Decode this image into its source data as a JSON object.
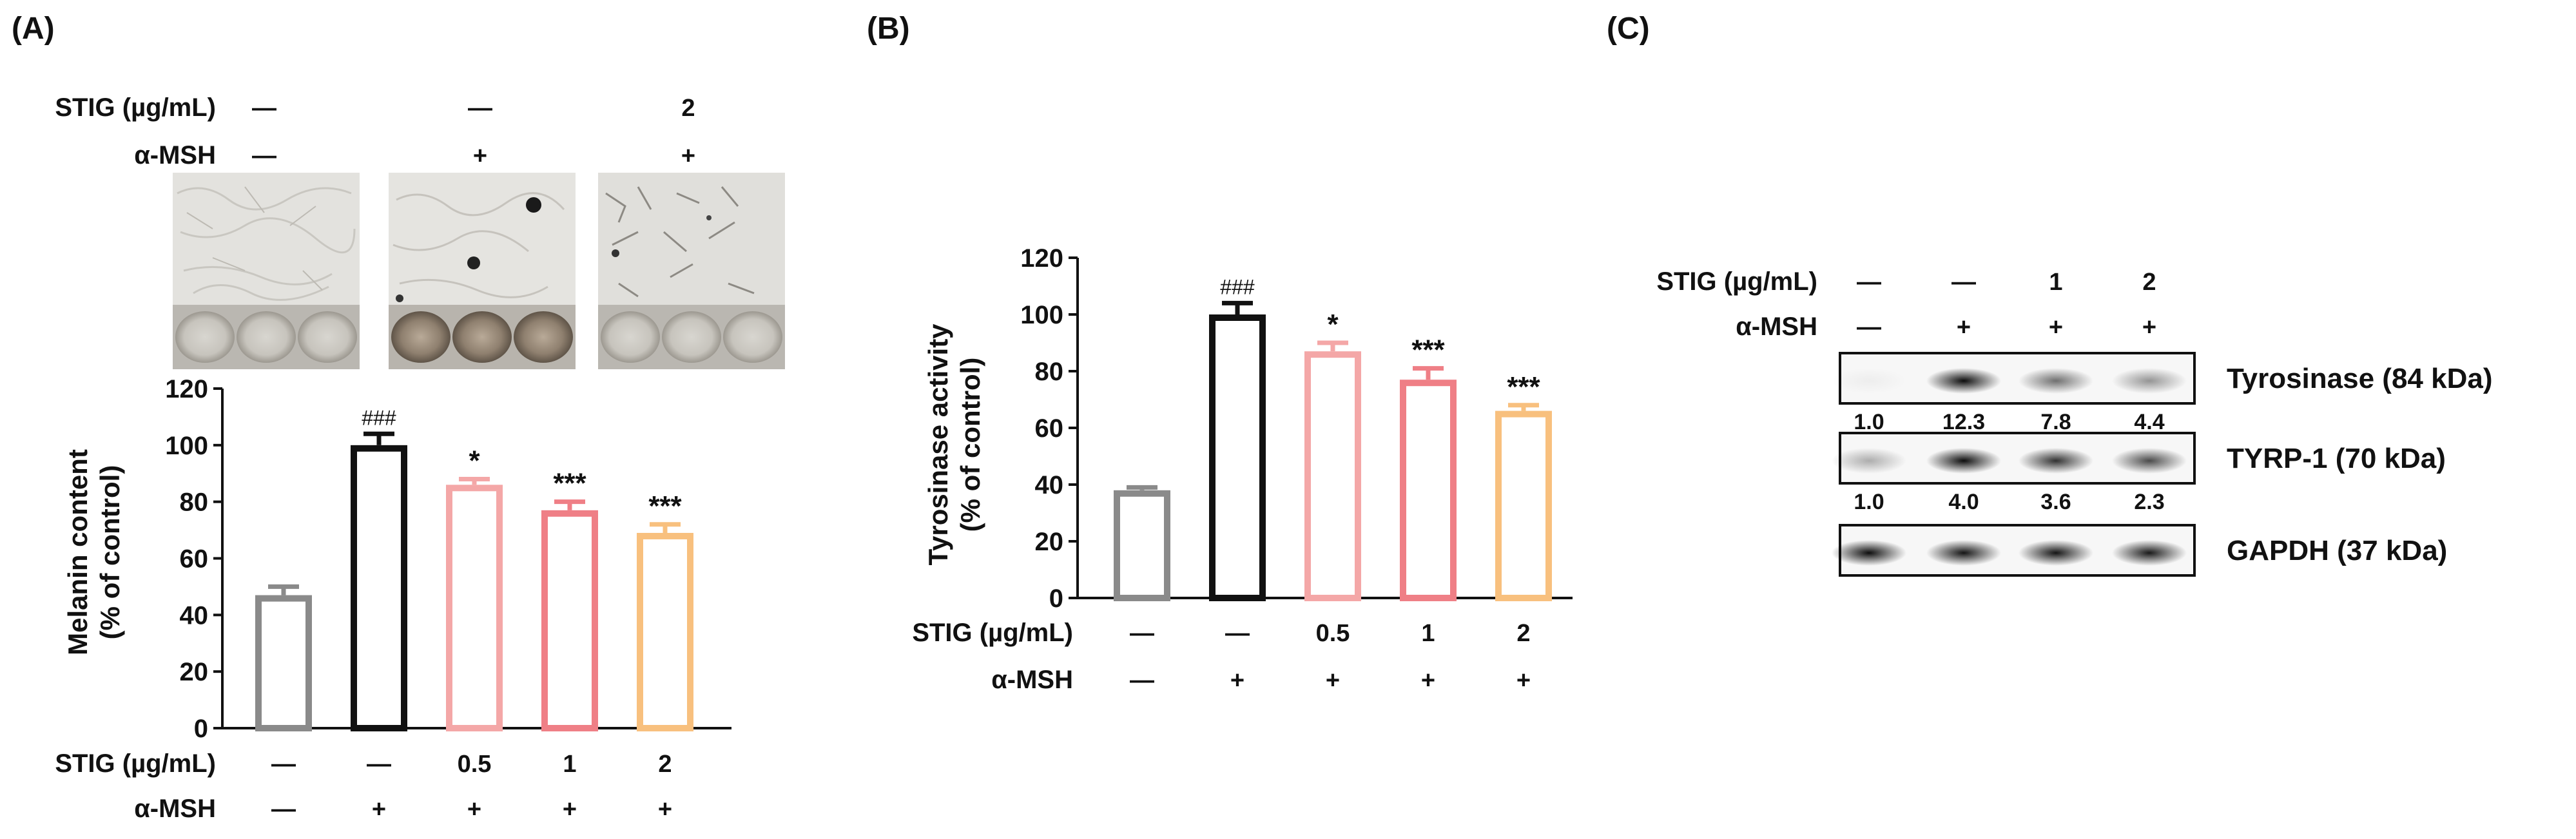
{
  "panels": {
    "a": "(A)",
    "b": "(B)",
    "c": "(C)"
  },
  "panel_a_images": {
    "stig_label": "STIG (µg/mL)",
    "msh_label": "α-MSH",
    "stig_values": [
      "—",
      "—",
      "2"
    ],
    "msh_values": [
      "—",
      "+",
      "+"
    ]
  },
  "treatment_rows": {
    "stig_label": "STIG (µg/mL)",
    "msh_label": "α-MSH",
    "stig_values": [
      "—",
      "—",
      "0.5",
      "1",
      "2"
    ],
    "msh_values": [
      "—",
      "+",
      "+",
      "+",
      "+"
    ]
  },
  "colors": {
    "control": "#8a8a8a",
    "msh": "#111111",
    "stig_05": "#f4a7a7",
    "stig_1": "#ef7f86",
    "stig_2": "#f8c07e"
  },
  "chart_data": [
    {
      "type": "bar",
      "id": "melanin",
      "title": "",
      "ylabel": "Melanin content (% of control)",
      "ylabel_lines": [
        "Melanin content",
        "(% of control)"
      ],
      "ylim": [
        0,
        120
      ],
      "yticks": [
        0,
        20,
        40,
        60,
        80,
        100,
        120
      ],
      "categories": [
        "—/—",
        "—/+",
        "0.5/+",
        "1/+",
        "2/+"
      ],
      "values": [
        47,
        100,
        86,
        77,
        69
      ],
      "errors": [
        3,
        4,
        2,
        3,
        3
      ],
      "annotations": [
        "",
        "###",
        "*",
        "***",
        "***"
      ],
      "bar_colors": [
        "#8a8a8a",
        "#111111",
        "#f4a7a7",
        "#ef7f86",
        "#f8c07e"
      ]
    },
    {
      "type": "bar",
      "id": "tyrosinase",
      "title": "",
      "ylabel": "Tyrosinase activity (% of control)",
      "ylabel_lines": [
        "Tyrosinase activity",
        "(% of control)"
      ],
      "ylim": [
        0,
        120
      ],
      "yticks": [
        0,
        20,
        40,
        60,
        80,
        100,
        120
      ],
      "categories": [
        "—/—",
        "—/+",
        "0.5/+",
        "1/+",
        "2/+"
      ],
      "values": [
        38,
        100,
        87,
        77,
        66
      ],
      "errors": [
        1,
        4,
        3,
        4,
        2
      ],
      "annotations": [
        "",
        "###",
        "*",
        "***",
        "***"
      ],
      "bar_colors": [
        "#8a8a8a",
        "#111111",
        "#f4a7a7",
        "#ef7f86",
        "#f8c07e"
      ]
    }
  ],
  "western": {
    "stig_label": "STIG (µg/mL)",
    "msh_label": "α-MSH",
    "stig_values": [
      "—",
      "—",
      "1",
      "2"
    ],
    "msh_values": [
      "—",
      "+",
      "+",
      "+"
    ],
    "blots": [
      {
        "label": "Tyrosinase (84 kDa)",
        "quant": [
          "1.0",
          "12.3",
          "7.8",
          "4.4"
        ],
        "intensity": [
          0.04,
          0.95,
          0.55,
          0.4
        ]
      },
      {
        "label": "TYRP-1 (70 kDa)",
        "quant": [
          "1.0",
          "4.0",
          "3.6",
          "2.3"
        ],
        "intensity": [
          0.3,
          0.95,
          0.8,
          0.7
        ]
      },
      {
        "label": "GAPDH (37 kDa)",
        "quant": [],
        "intensity": [
          0.95,
          0.92,
          0.92,
          0.9
        ]
      }
    ]
  }
}
